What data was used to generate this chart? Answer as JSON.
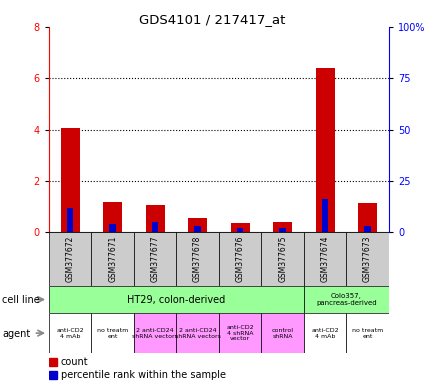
{
  "title": "GDS4101 / 217417_at",
  "samples": [
    "GSM377672",
    "GSM377671",
    "GSM377677",
    "GSM377678",
    "GSM377676",
    "GSM377675",
    "GSM377674",
    "GSM377673"
  ],
  "count_values": [
    4.05,
    1.2,
    1.05,
    0.55,
    0.38,
    0.4,
    6.4,
    1.15
  ],
  "percentile_values": [
    12,
    4,
    5,
    3,
    2,
    2,
    16,
    3
  ],
  "ylim_left": [
    0,
    8
  ],
  "ylim_right": [
    0,
    100
  ],
  "yticks_left": [
    0,
    2,
    4,
    6,
    8
  ],
  "yticks_right": [
    0,
    25,
    50,
    75,
    100
  ],
  "ytick_labels_right": [
    "0",
    "25",
    "50",
    "75",
    "100%"
  ],
  "count_color": "#cc0000",
  "percentile_color": "#0000cc",
  "sample_box_color": "#cccccc",
  "cell_line_color_ht29": "#99ff99",
  "cell_line_color_colo": "#99ff99",
  "agent_per_sample_labels": [
    "anti-CD2\n4 mAb",
    "no treatm\nent",
    "2 anti-CD24\nshRNA vectors",
    "2 anti-CD24\nshRNA vectors",
    "anti-CD2\n4 shRNA\nvector",
    "control\nshRNA",
    "anti-CD2\n4 mAb",
    "no treatm\nent"
  ],
  "agent_per_sample_colors": [
    "#ffffff",
    "#ffffff",
    "#ff99ff",
    "#ff99ff",
    "#ff99ff",
    "#ff99ff",
    "#ffffff",
    "#ffffff"
  ],
  "legend_count_label": "count",
  "legend_percentile_label": "percentile rank within the sample"
}
